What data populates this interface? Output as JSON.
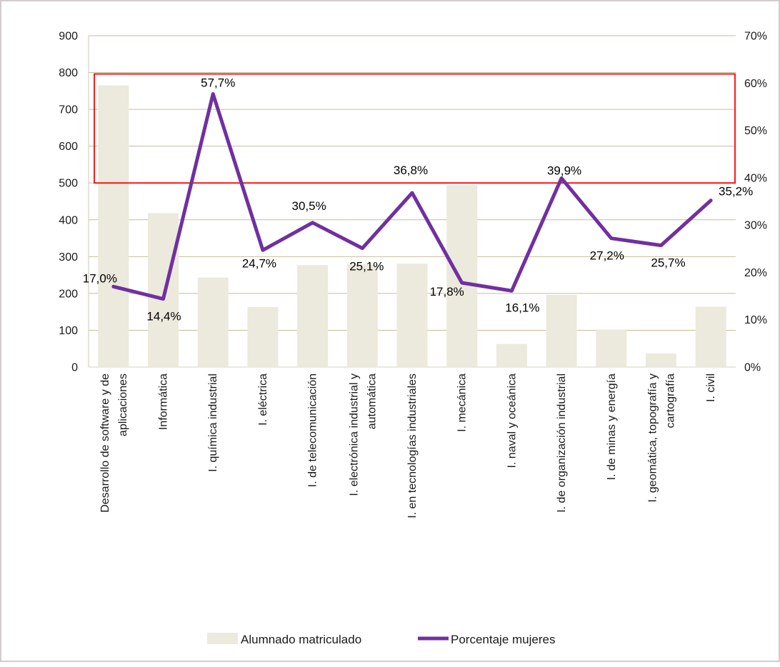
{
  "figure": {
    "title": "",
    "background": "#ffffff",
    "border_color": "#d2cecd"
  },
  "chart_data": {
    "type": "combo",
    "categories": [
      "Desarrollo de software y de aplicaciones",
      "Informática",
      "I. química industrial",
      "I. eléctrica",
      "I. de telecomunicación",
      "I. electrónica industrial y automática",
      "I. en tecnologías industriales",
      "I. mecánica",
      "I. naval y oceánica",
      "I. de organización industrial",
      "I. de minas y  energía",
      "I. geomática, topografía y cartografía",
      "I. civil"
    ],
    "series": [
      {
        "name": "Alumnado matriculado",
        "type": "bar",
        "axis": "left",
        "color": "#ece9dd",
        "values": [
          765,
          418,
          243,
          163,
          277,
          279,
          281,
          494,
          63,
          196,
          102,
          37,
          164
        ]
      },
      {
        "name": "Porcentaje mujeres",
        "type": "line",
        "axis": "right",
        "color": "#7030a0",
        "values": [
          17.0,
          14.4,
          57.7,
          24.7,
          30.5,
          25.1,
          36.8,
          17.8,
          16.1,
          39.9,
          27.2,
          25.7,
          35.2
        ],
        "labels": [
          "17,0%",
          "14,4%",
          "57,7%",
          "24,7%",
          "30,5%",
          "25,1%",
          "36,8%",
          "17,8%",
          "16,1%",
          "39,9%",
          "27,2%",
          "25,7%",
          "35,2%"
        ]
      }
    ],
    "left_axis": {
      "min": 0,
      "max": 900,
      "step": 100,
      "suffix": ""
    },
    "right_axis": {
      "min": 0,
      "max": 70,
      "step": 10,
      "suffix": "%"
    },
    "grid": true,
    "gridline_color": "#c6be99",
    "axisline_color": "#d5d0c2",
    "text_color": "#1a1a1a",
    "annotation_box": {
      "shape": "rect-outline",
      "color": "#ff0000",
      "left_axis_from": 500,
      "left_axis_to": 800
    },
    "legend_position": "bottom"
  }
}
